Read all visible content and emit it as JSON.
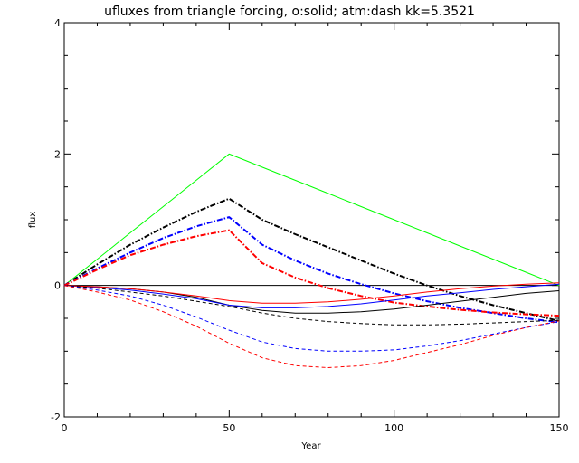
{
  "chart_data": {
    "type": "line",
    "title": "ufluxes from triangle forcing, o:solid; atm:dash kk=5.3521",
    "xlabel": "Year",
    "ylabel": "flux",
    "xlim": [
      0,
      150
    ],
    "ylim": [
      -2,
      4
    ],
    "x_ticks": [
      0,
      50,
      100,
      150
    ],
    "y_ticks": [
      -2,
      0,
      2,
      4
    ],
    "grid": false,
    "legend": "none",
    "x": [
      0,
      10,
      20,
      30,
      40,
      50,
      60,
      70,
      80,
      90,
      100,
      110,
      120,
      130,
      140,
      150
    ],
    "series": [
      {
        "color": "#00ff00",
        "style": "solid",
        "values": [
          0,
          0.4,
          0.8,
          1.2,
          1.6,
          2.0,
          1.8,
          1.6,
          1.4,
          1.2,
          1.0,
          0.8,
          0.6,
          0.4,
          0.2,
          0.0
        ]
      },
      {
        "color": "#000000",
        "style": "dashdot",
        "values": [
          0,
          0.32,
          0.62,
          0.88,
          1.12,
          1.32,
          1.0,
          0.78,
          0.58,
          0.38,
          0.18,
          0.0,
          -0.16,
          -0.3,
          -0.42,
          -0.54
        ]
      },
      {
        "color": "#0000ff",
        "style": "dashdot",
        "values": [
          0,
          0.26,
          0.5,
          0.72,
          0.9,
          1.04,
          0.62,
          0.38,
          0.18,
          0.02,
          -0.12,
          -0.24,
          -0.34,
          -0.42,
          -0.5,
          -0.56
        ]
      },
      {
        "color": "#ff0000",
        "style": "dashdot",
        "values": [
          0,
          0.24,
          0.46,
          0.62,
          0.75,
          0.84,
          0.34,
          0.12,
          -0.04,
          -0.16,
          -0.26,
          -0.32,
          -0.37,
          -0.41,
          -0.44,
          -0.46
        ]
      },
      {
        "color": "#000000",
        "style": "solid",
        "values": [
          0,
          -0.02,
          -0.05,
          -0.1,
          -0.18,
          -0.3,
          -0.38,
          -0.42,
          -0.42,
          -0.4,
          -0.36,
          -0.3,
          -0.24,
          -0.18,
          -0.12,
          -0.08
        ]
      },
      {
        "color": "#0000ff",
        "style": "solid",
        "values": [
          0,
          -0.03,
          -0.07,
          -0.13,
          -0.2,
          -0.3,
          -0.34,
          -0.34,
          -0.32,
          -0.28,
          -0.22,
          -0.16,
          -0.11,
          -0.06,
          -0.02,
          0.02
        ]
      },
      {
        "color": "#ff0000",
        "style": "solid",
        "values": [
          0,
          -0.02,
          -0.05,
          -0.1,
          -0.16,
          -0.23,
          -0.27,
          -0.27,
          -0.25,
          -0.21,
          -0.16,
          -0.1,
          -0.05,
          -0.01,
          0.02,
          0.04
        ]
      },
      {
        "color": "#000000",
        "style": "dashed",
        "values": [
          0,
          -0.04,
          -0.1,
          -0.16,
          -0.24,
          -0.32,
          -0.42,
          -0.5,
          -0.55,
          -0.58,
          -0.6,
          -0.6,
          -0.59,
          -0.57,
          -0.55,
          -0.53
        ]
      },
      {
        "color": "#0000ff",
        "style": "dashed",
        "values": [
          0,
          -0.07,
          -0.16,
          -0.3,
          -0.48,
          -0.68,
          -0.86,
          -0.96,
          -1.0,
          -1.0,
          -0.98,
          -0.92,
          -0.84,
          -0.74,
          -0.64,
          -0.55
        ]
      },
      {
        "color": "#ff0000",
        "style": "dashed",
        "values": [
          0,
          -0.1,
          -0.22,
          -0.4,
          -0.62,
          -0.88,
          -1.1,
          -1.22,
          -1.25,
          -1.22,
          -1.14,
          -1.02,
          -0.9,
          -0.76,
          -0.64,
          -0.54
        ]
      }
    ]
  }
}
